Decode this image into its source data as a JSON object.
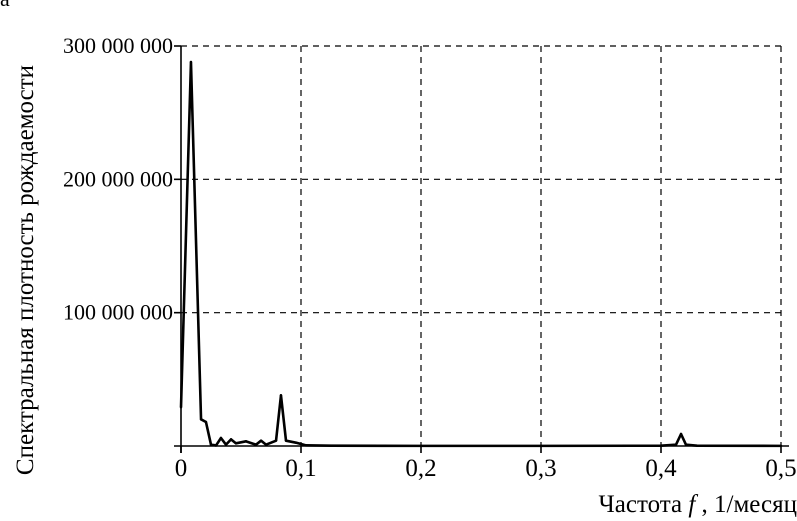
{
  "chart_data": {
    "type": "line",
    "panel_label": "a",
    "xlabel_prefix": "Частота ",
    "xlabel_symbol": "f",
    "xlabel_suffix": ", 1/месяц",
    "ylabel": "Спектральная плотность рождаемости",
    "xlim": [
      0,
      0.5
    ],
    "ylim": [
      0,
      300000000
    ],
    "grid": true,
    "grid_style": "dashed",
    "line_color": "#000000",
    "x_ticks": [
      {
        "value": 0,
        "label": "0"
      },
      {
        "value": 0.1,
        "label": "0,1"
      },
      {
        "value": 0.2,
        "label": "0,2"
      },
      {
        "value": 0.3,
        "label": "0,3"
      },
      {
        "value": 0.4,
        "label": "0,4"
      },
      {
        "value": 0.5,
        "label": "0,5"
      }
    ],
    "y_ticks": [
      {
        "value": 100000000,
        "label": "100 000 000"
      },
      {
        "value": 200000000,
        "label": "200 000 000"
      },
      {
        "value": 300000000,
        "label": "300 000 000"
      }
    ],
    "series": [
      {
        "points": [
          [
            0.0,
            29000000
          ],
          [
            0.0083,
            288000000
          ],
          [
            0.0167,
            20000000
          ],
          [
            0.0208,
            18000000
          ],
          [
            0.025,
            1000000
          ],
          [
            0.0292,
            400000
          ],
          [
            0.0333,
            6000000
          ],
          [
            0.0375,
            1000000
          ],
          [
            0.0417,
            5000000
          ],
          [
            0.0458,
            2000000
          ],
          [
            0.0542,
            3500000
          ],
          [
            0.0625,
            1000000
          ],
          [
            0.0667,
            4000000
          ],
          [
            0.0708,
            1000000
          ],
          [
            0.0792,
            4000000
          ],
          [
            0.0833,
            38000000
          ],
          [
            0.0875,
            4000000
          ],
          [
            0.0958,
            2500000
          ],
          [
            0.1042,
            500000
          ],
          [
            0.125,
            200000
          ],
          [
            0.2,
            100000
          ],
          [
            0.3,
            100000
          ],
          [
            0.4,
            200000
          ],
          [
            0.4125,
            1000000
          ],
          [
            0.4167,
            9000000
          ],
          [
            0.4208,
            1000000
          ],
          [
            0.43,
            200000
          ],
          [
            0.5,
            100000
          ]
        ]
      }
    ]
  }
}
